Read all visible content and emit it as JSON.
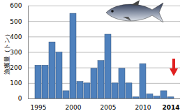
{
  "chart_data": {
    "type": "bar",
    "y_label": "漁獲量（トン）",
    "categories": [
      "1995",
      null,
      null,
      null,
      null,
      "2000",
      null,
      null,
      null,
      null,
      "2005",
      null,
      null,
      null,
      null,
      "2010",
      null,
      null,
      null,
      "2014"
    ],
    "values": [
      215,
      215,
      365,
      300,
      50,
      550,
      110,
      100,
      195,
      245,
      415,
      100,
      195,
      100,
      10,
      225,
      30,
      15,
      50,
      10
    ],
    "color": "#4f81bd",
    "ylim": [
      0,
      600
    ],
    "yticks": [
      0,
      100,
      200,
      300,
      400,
      500,
      600
    ],
    "grid": true
  }
}
